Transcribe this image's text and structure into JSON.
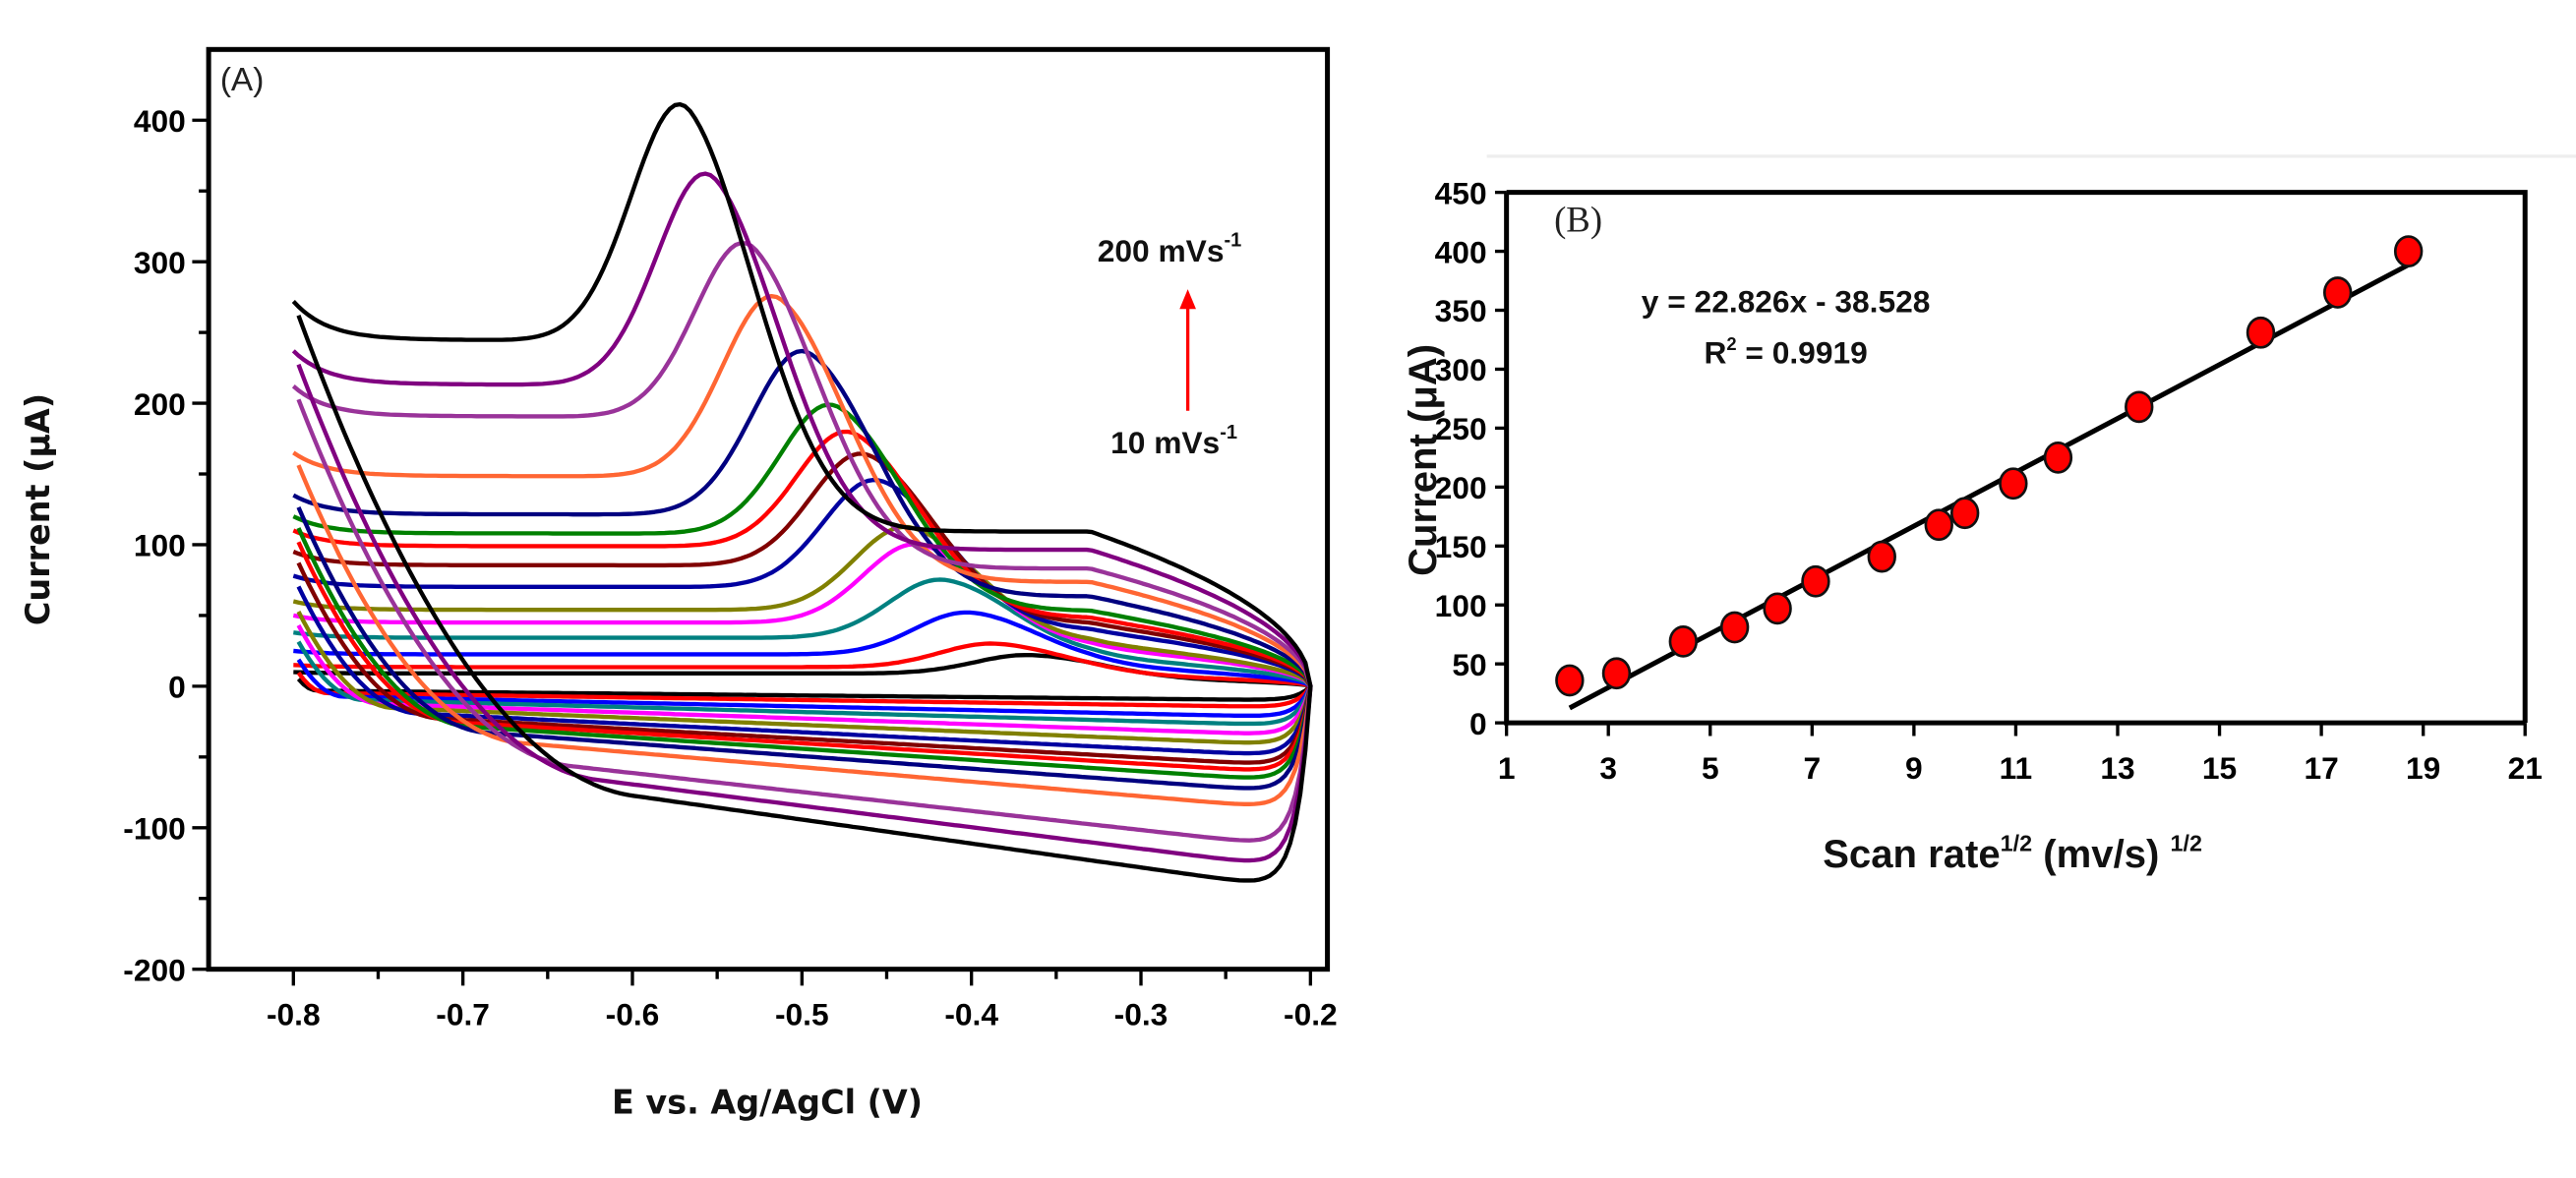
{
  "chart_data": [
    {
      "type": "line",
      "panel_label": "(A)",
      "xlabel": "E vs. Ag/AgCl (V)",
      "ylabel": "Current (μA)",
      "xlim": [
        -0.85,
        -0.19
      ],
      "ylim": [
        -200,
        450
      ],
      "xticks": [
        "-0.8",
        "-0.7",
        "-0.6",
        "-0.5",
        "-0.4",
        "-0.3",
        "-0.2"
      ],
      "xtick_values": [
        -0.8,
        -0.7,
        -0.6,
        -0.5,
        -0.4,
        -0.3,
        -0.2
      ],
      "yticks": [
        "400",
        "300",
        "200",
        "100",
        "0",
        "-100",
        "-200"
      ],
      "ytick_values": [
        400,
        300,
        200,
        100,
        0,
        -100,
        -200
      ],
      "annotations": {
        "top": {
          "main": "200 mVs",
          "sup": "-1"
        },
        "bottom": {
          "main": "10 mVs",
          "sup": "-1"
        },
        "arrow_color": "#ff0000"
      },
      "series_fields": [
        "color",
        "start_current_uA",
        "peak_potential_V",
        "peak_current_uA",
        "reverse_end_current_uA"
      ],
      "series": [
        {
          "color": "#000000",
          "start": 272,
          "ep": -0.565,
          "ip": 405,
          "rev": -145
        },
        {
          "color": "#800080",
          "start": 237,
          "ep": -0.55,
          "ip": 357,
          "rev": -130
        },
        {
          "color": "#993399",
          "start": 212,
          "ep": -0.527,
          "ip": 308,
          "rev": -115
        },
        {
          "color": "#ff6633",
          "start": 165,
          "ep": -0.512,
          "ip": 273,
          "rev": -88
        },
        {
          "color": "#000080",
          "start": 135,
          "ep": -0.495,
          "ip": 235,
          "rev": -76
        },
        {
          "color": "#008000",
          "start": 120,
          "ep": -0.478,
          "ip": 197,
          "rev": -68
        },
        {
          "color": "#ff0000",
          "start": 110,
          "ep": -0.468,
          "ip": 178,
          "rev": -62
        },
        {
          "color": "#800000",
          "start": 95,
          "ep": -0.46,
          "ip": 163,
          "rev": -57
        },
        {
          "color": "#0000a0",
          "start": 78,
          "ep": -0.453,
          "ip": 145,
          "rev": -50
        },
        {
          "color": "#808000",
          "start": 60,
          "ep": -0.435,
          "ip": 112,
          "rev": -42
        },
        {
          "color": "#ff00ff",
          "start": 50,
          "ep": -0.43,
          "ip": 100,
          "rev": -35
        },
        {
          "color": "#008080",
          "start": 38,
          "ep": -0.415,
          "ip": 75,
          "rev": -28
        },
        {
          "color": "#0000ff",
          "start": 25,
          "ep": -0.4,
          "ip": 52,
          "rev": -22
        },
        {
          "color": "#ff0000",
          "start": 15,
          "ep": -0.385,
          "ip": 30,
          "rev": -15
        },
        {
          "color": "#000000",
          "start": 10,
          "ep": -0.365,
          "ip": 22,
          "rev": -10
        }
      ]
    },
    {
      "type": "scatter",
      "panel_label": "(B)",
      "xlabel": {
        "main": "Scan rate",
        "sup1": "1/2",
        "unit": " (mv/s) ",
        "sup2": "1/2"
      },
      "ylabel": "Current (μA)",
      "xlim": [
        1,
        21
      ],
      "ylim": [
        0,
        450
      ],
      "xticks": [
        "1",
        "3",
        "5",
        "7",
        "9",
        "11",
        "13",
        "15",
        "17",
        "19",
        "21"
      ],
      "xtick_values": [
        1,
        3,
        5,
        7,
        9,
        11,
        13,
        15,
        17,
        19,
        21
      ],
      "yticks": [
        "450",
        "400",
        "350",
        "300",
        "250",
        "200",
        "150",
        "100",
        "50",
        "0"
      ],
      "ytick_values": [
        450,
        400,
        350,
        300,
        250,
        200,
        150,
        100,
        50,
        0
      ],
      "x": [
        2.24,
        3.16,
        4.47,
        5.48,
        6.32,
        7.07,
        8.37,
        9.49,
        10.0,
        10.95,
        11.83,
        13.42,
        15.81,
        17.32,
        18.71
      ],
      "y": [
        36,
        42,
        69,
        81,
        97,
        120,
        141,
        168,
        178,
        203,
        225,
        268,
        331,
        365,
        400
      ],
      "marker_color": "#ff0000",
      "fit": {
        "slope": 22.826,
        "intercept": -38.528,
        "x_range": [
          2.24,
          18.71
        ]
      },
      "equation": "y = 22.826x - 38.528",
      "r2": {
        "main": "R",
        "sup": "2",
        "rest": " = 0.9919"
      }
    }
  ]
}
